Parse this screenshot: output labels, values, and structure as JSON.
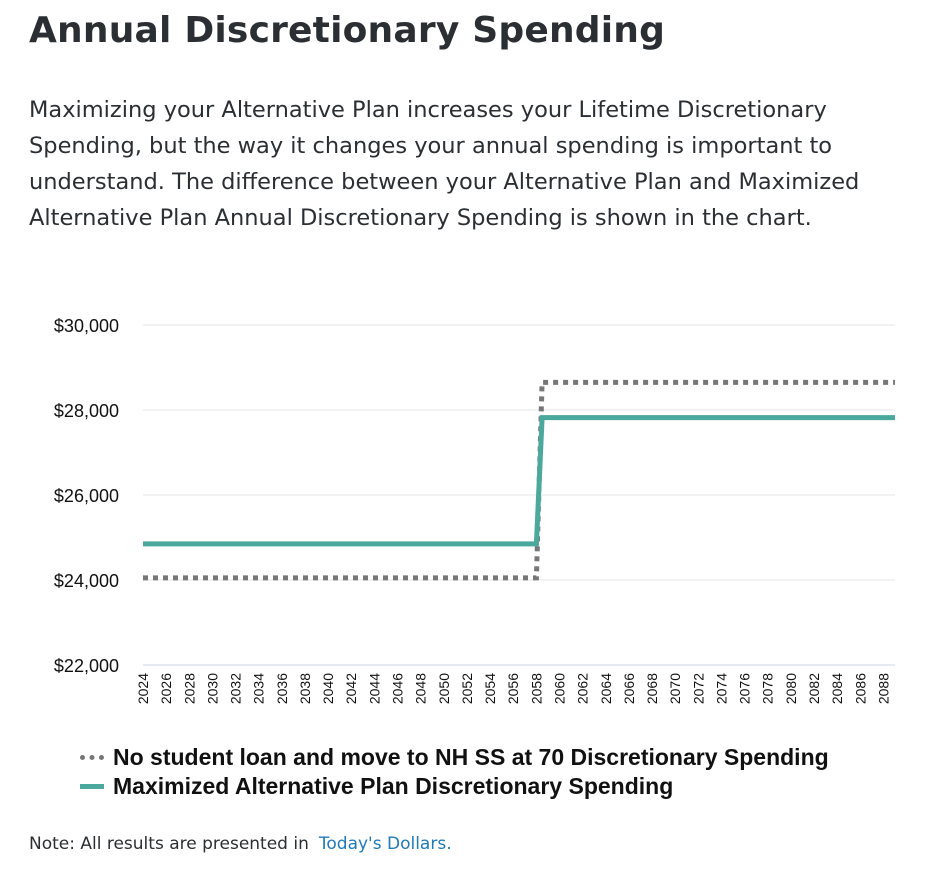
{
  "header": {
    "title": "Annual Discretionary Spending"
  },
  "intro": {
    "text": "Maximizing your Alternative Plan increases your Lifetime Discretionary Spending, but the way it changes your annual spending is important to understand. The difference between your Alternative Plan and Maximized Alternative Plan Annual Discretionary Spending is shown in the chart."
  },
  "chart_data": {
    "type": "line",
    "title": "",
    "xlabel": "",
    "ylabel": "",
    "x_range": [
      2024,
      2089
    ],
    "x_ticks": [
      2024,
      2026,
      2028,
      2030,
      2032,
      2034,
      2036,
      2038,
      2040,
      2042,
      2044,
      2046,
      2048,
      2050,
      2052,
      2054,
      2056,
      2058,
      2060,
      2062,
      2064,
      2066,
      2068,
      2070,
      2072,
      2074,
      2076,
      2078,
      2080,
      2082,
      2084,
      2086,
      2088
    ],
    "ylim": [
      22000,
      30000
    ],
    "y_ticks": [
      22000,
      24000,
      26000,
      28000,
      30000
    ],
    "y_tick_labels": [
      "$22,000",
      "$24,000",
      "$26,000",
      "$28,000",
      "$30,000"
    ],
    "grid": true,
    "legend_position": "bottom",
    "series": [
      {
        "name": "No student loan and move to NH SS at 70 Discretionary Spending",
        "style": "dotted",
        "color": "#777777",
        "points": [
          [
            2024,
            24050
          ],
          [
            2058,
            24050
          ],
          [
            2058.5,
            28650
          ],
          [
            2089,
            28650
          ]
        ]
      },
      {
        "name": "Maximized Alternative Plan Discretionary Spending",
        "style": "solid",
        "color": "#4aa89c",
        "points": [
          [
            2024,
            24850
          ],
          [
            2058,
            24850
          ],
          [
            2058.5,
            27820
          ],
          [
            2089,
            27820
          ]
        ]
      }
    ]
  },
  "note": {
    "text": "Note: All results are presented in",
    "link": "Today's Dollars."
  }
}
